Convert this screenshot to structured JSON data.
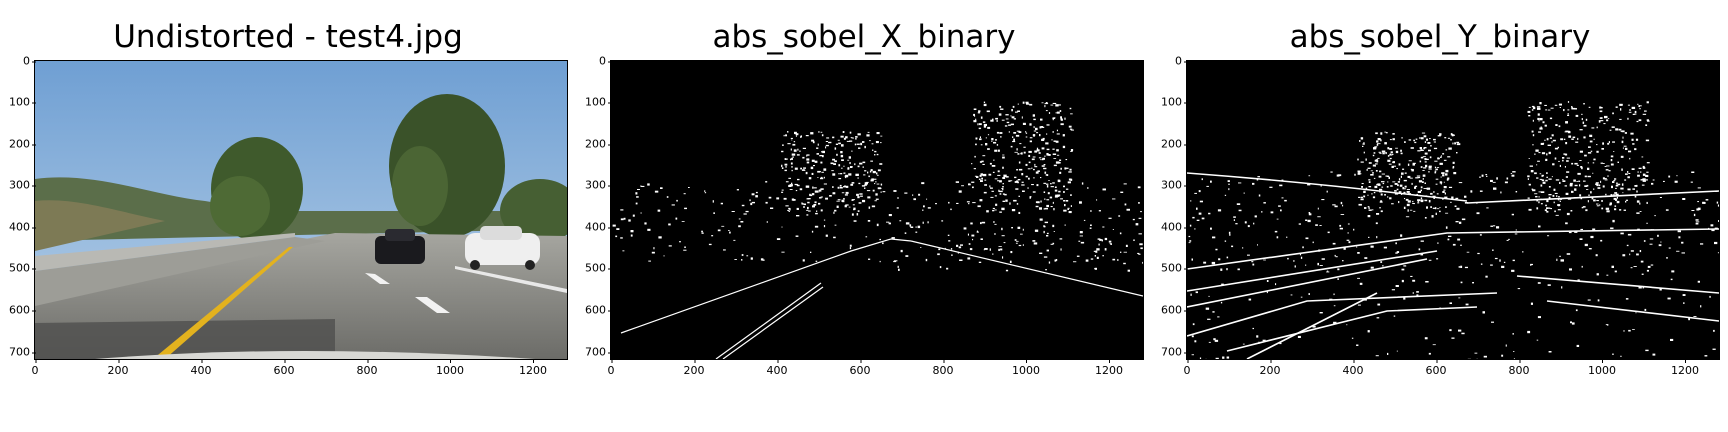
{
  "panels": [
    {
      "title": "Undistorted - test4.jpg",
      "kind": "photo"
    },
    {
      "title": "abs_sobel_X_binary",
      "kind": "binary-x"
    },
    {
      "title": "abs_sobel_Y_binary",
      "kind": "binary-y"
    }
  ],
  "y_ticks": [
    "0",
    "100",
    "200",
    "300",
    "400",
    "500",
    "600",
    "700"
  ],
  "x_ticks": [
    "0",
    "200",
    "400",
    "600",
    "800",
    "1000",
    "1200"
  ],
  "image_extent": {
    "width": 1280,
    "height": 720
  },
  "colors": {
    "sky": "#7aa6d6",
    "road": "#8a8a8a",
    "lane_yellow": "#e3b21e",
    "binary_bg": "#000000",
    "binary_edge": "#ffffff"
  }
}
